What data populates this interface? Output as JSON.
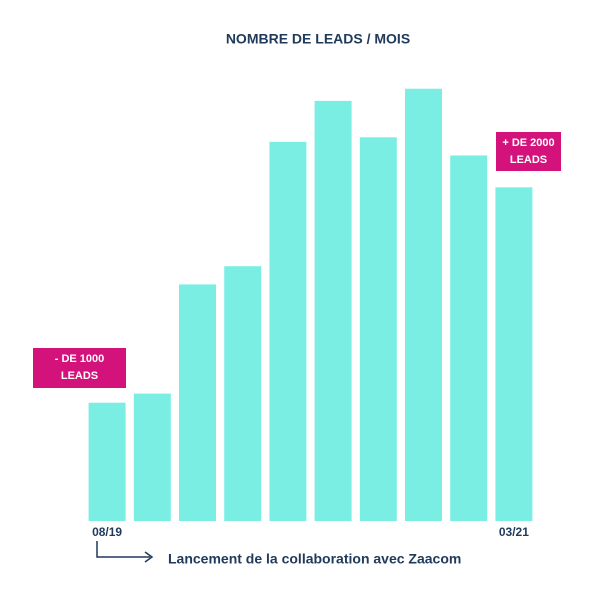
{
  "chart_data": {
    "type": "bar",
    "title": "NOMBRE DE LEADS / MOIS",
    "categories": [
      "08/19",
      null,
      null,
      null,
      null,
      null,
      null,
      null,
      null,
      "03/21"
    ],
    "values": [
      780,
      840,
      1560,
      1680,
      2500,
      2770,
      2530,
      2850,
      2410,
      2200
    ],
    "color": "#7beee4",
    "ylim": [
      0,
      3000
    ],
    "annotations": [
      {
        "lines": [
          "- DE 1000",
          "LEADS"
        ],
        "color": "#d3127b"
      },
      {
        "lines": [
          "+ DE 2000",
          "LEADS"
        ],
        "color": "#d3127b"
      }
    ],
    "note": "Lancement de la collaboration avec Zaacom"
  }
}
